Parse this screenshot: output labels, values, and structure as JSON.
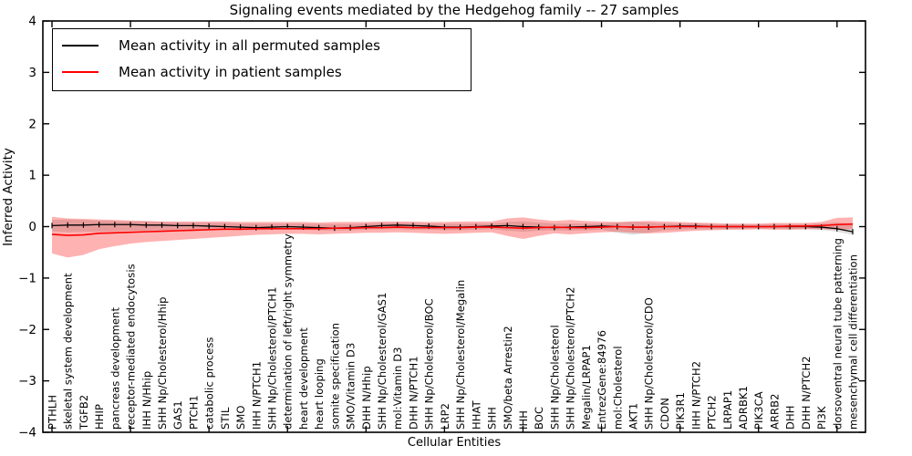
{
  "title": "Signaling events mediated by the Hedgehog family -- 27 samples",
  "xlabel": "Cellular Entities",
  "ylabel": "Inferred Activity",
  "legend": {
    "items": [
      {
        "label": "Mean activity in all permuted samples",
        "color": "#000000"
      },
      {
        "label": "Mean activity in patient samples",
        "color": "#ff0000"
      }
    ]
  },
  "chart_data": {
    "type": "line",
    "title": "Signaling events mediated by the Hedgehog family -- 27 samples",
    "xlabel": "Cellular Entities",
    "ylabel": "Inferred Activity",
    "ylim": [
      -4,
      4
    ],
    "yticks": [
      4,
      3,
      2,
      1,
      0,
      -1,
      -2,
      -3,
      -4
    ],
    "ytick_labels": [
      "4",
      "3",
      "2",
      "1",
      "0",
      "−1",
      "−2",
      "−3",
      "−4"
    ],
    "grid": false,
    "legend_position": "upper left",
    "categories": [
      "PTHLH",
      "skeletal system development",
      "TGFB2",
      "HHIP",
      "pancreas development",
      "receptor-mediated endocytosis",
      "IHH N/Hhip",
      "SHH Np/Cholesterol/Hhip",
      "GAS1",
      "PTCH1",
      "catabolic process",
      "STIL",
      "SMO",
      "IHH N/PTCH1",
      "SHH Np/Cholesterol/PTCH1",
      "determination of left/right symmetry",
      "heart development",
      "heart looping",
      "somite specification",
      "SMO/Vitamin D3",
      "DHH N/Hhip",
      "SHH Np/Cholesterol/GAS1",
      "mol:Vitamin D3",
      "DHH N/PTCH1",
      "SHH Np/Cholesterol/BOC",
      "LRP2",
      "SHH Np/Cholesterol/Megalin",
      "HHAT",
      "SHH",
      "SMO/beta Arrestin2",
      "IHH",
      "BOC",
      "SHH Np/Cholesterol",
      "SHH Np/Cholesterol/PTCH2",
      "Megalin/LRPAP1",
      "EntrezGene:84976",
      "mol:Cholesterol",
      "AKT1",
      "SHH Np/Cholesterol/CDO",
      "CDON",
      "PIK3R1",
      "IHH N/PTCH2",
      "PTCH2",
      "LRPAP1",
      "ADRBK1",
      "PIK3CA",
      "ARRB2",
      "DHH",
      "DHH N/PTCH2",
      "PI3K",
      "dorsoventral neural tube patterning",
      "mesenchymal cell differentiation"
    ],
    "series": [
      {
        "name": "Mean activity in all permuted samples",
        "color": "#000000",
        "line_width": 1.3,
        "marker": "|",
        "band_color": "#000000",
        "band_opacity": 0.13,
        "values": [
          0.02,
          0.03,
          0.03,
          0.04,
          0.04,
          0.04,
          0.03,
          0.03,
          0.02,
          0.02,
          0.01,
          0.0,
          -0.01,
          -0.02,
          -0.01,
          0.0,
          -0.01,
          -0.02,
          -0.03,
          -0.02,
          0.0,
          0.02,
          0.03,
          0.02,
          0.01,
          -0.01,
          -0.01,
          0.0,
          0.01,
          0.02,
          0.0,
          -0.01,
          -0.02,
          -0.01,
          0.0,
          0.01,
          0.0,
          -0.01,
          -0.01,
          0.0,
          0.01,
          0.01,
          0.0,
          0.0,
          0.0,
          0.0,
          0.0,
          0.0,
          0.0,
          -0.01,
          -0.04,
          -0.1
        ],
        "band_low": [
          -0.09,
          -0.11,
          -0.1,
          -0.1,
          -0.09,
          -0.08,
          -0.08,
          -0.07,
          -0.07,
          -0.06,
          -0.06,
          -0.06,
          -0.07,
          -0.07,
          -0.06,
          -0.06,
          -0.06,
          -0.07,
          -0.08,
          -0.07,
          -0.06,
          -0.05,
          -0.05,
          -0.06,
          -0.06,
          -0.07,
          -0.07,
          -0.06,
          -0.05,
          -0.08,
          -0.1,
          -0.08,
          -0.07,
          -0.08,
          -0.07,
          -0.06,
          -0.12,
          -0.16,
          -0.12,
          -0.07,
          -0.06,
          -0.05,
          -0.05,
          -0.05,
          -0.04,
          -0.04,
          -0.04,
          -0.05,
          -0.05,
          -0.06,
          -0.1,
          -0.16
        ],
        "band_high": [
          0.13,
          0.14,
          0.13,
          0.12,
          0.11,
          0.1,
          0.1,
          0.09,
          0.08,
          0.08,
          0.07,
          0.07,
          0.06,
          0.06,
          0.06,
          0.06,
          0.06,
          0.05,
          0.05,
          0.05,
          0.06,
          0.07,
          0.08,
          0.07,
          0.06,
          0.06,
          0.06,
          0.06,
          0.06,
          0.09,
          0.1,
          0.08,
          0.06,
          0.06,
          0.06,
          0.06,
          0.08,
          0.1,
          0.08,
          0.06,
          0.06,
          0.06,
          0.05,
          0.05,
          0.04,
          0.04,
          0.05,
          0.05,
          0.05,
          0.06,
          0.08,
          0.06
        ]
      },
      {
        "name": "Mean activity in patient samples",
        "color": "#ff0000",
        "line_width": 1.6,
        "marker": "none",
        "band_color": "#ff0000",
        "band_opacity": 0.3,
        "values": [
          -0.15,
          -0.17,
          -0.16,
          -0.13,
          -0.12,
          -0.11,
          -0.1,
          -0.09,
          -0.08,
          -0.07,
          -0.06,
          -0.05,
          -0.05,
          -0.04,
          -0.04,
          -0.04,
          -0.04,
          -0.04,
          -0.03,
          -0.03,
          -0.02,
          -0.02,
          -0.01,
          -0.02,
          -0.02,
          -0.02,
          -0.02,
          -0.01,
          -0.01,
          -0.02,
          -0.03,
          -0.02,
          -0.01,
          -0.02,
          -0.02,
          -0.01,
          0.0,
          -0.01,
          -0.01,
          0.0,
          0.0,
          0.0,
          0.0,
          0.0,
          0.0,
          0.0,
          0.0,
          0.01,
          0.01,
          0.02,
          0.04,
          0.05
        ],
        "band_low": [
          -0.52,
          -0.6,
          -0.55,
          -0.44,
          -0.38,
          -0.33,
          -0.3,
          -0.28,
          -0.26,
          -0.24,
          -0.22,
          -0.2,
          -0.18,
          -0.16,
          -0.15,
          -0.14,
          -0.14,
          -0.15,
          -0.14,
          -0.13,
          -0.12,
          -0.12,
          -0.11,
          -0.12,
          -0.13,
          -0.14,
          -0.13,
          -0.12,
          -0.11,
          -0.18,
          -0.24,
          -0.18,
          -0.13,
          -0.15,
          -0.13,
          -0.11,
          -0.1,
          -0.12,
          -0.13,
          -0.12,
          -0.1,
          -0.08,
          -0.07,
          -0.06,
          -0.06,
          -0.05,
          -0.06,
          -0.06,
          -0.05,
          -0.05,
          -0.06,
          -0.05
        ],
        "band_high": [
          0.19,
          0.16,
          0.15,
          0.14,
          0.13,
          0.12,
          0.11,
          0.1,
          0.1,
          0.1,
          0.1,
          0.1,
          0.09,
          0.09,
          0.09,
          0.09,
          0.09,
          0.08,
          0.09,
          0.09,
          0.09,
          0.1,
          0.1,
          0.1,
          0.09,
          0.09,
          0.1,
          0.1,
          0.1,
          0.16,
          0.18,
          0.14,
          0.11,
          0.13,
          0.11,
          0.1,
          0.09,
          0.1,
          0.11,
          0.1,
          0.09,
          0.08,
          0.07,
          0.06,
          0.06,
          0.06,
          0.07,
          0.07,
          0.07,
          0.09,
          0.17,
          0.18
        ]
      }
    ]
  }
}
